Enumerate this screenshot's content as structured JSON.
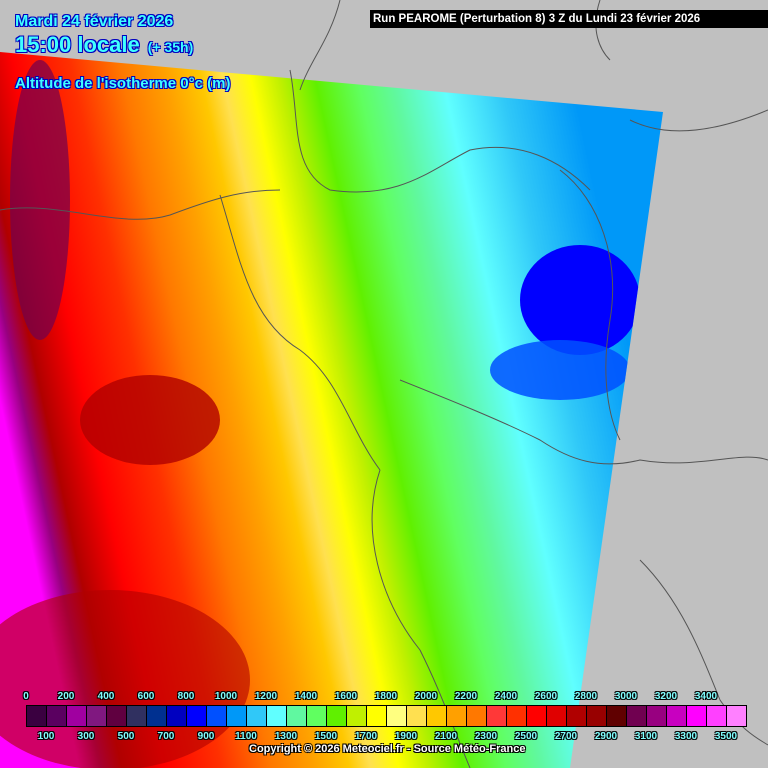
{
  "header": {
    "date": "Mardi 24 février 2026",
    "time": "15:00 locale",
    "lead": "(+ 35h)",
    "parameter": "Altitude de l'isotherme 0°c (m)",
    "run": "Run PEAROME (Perturbation 8) 3 Z du Lundi 23 février 2026"
  },
  "legend": {
    "top_labels": [
      "0",
      "200",
      "400",
      "600",
      "800",
      "1000",
      "1200",
      "1400",
      "1600",
      "1800",
      "2000",
      "2200",
      "2400",
      "2600",
      "2800",
      "3000",
      "3200",
      "3400"
    ],
    "bottom_labels": [
      "100",
      "300",
      "500",
      "700",
      "900",
      "1100",
      "1300",
      "1500",
      "1700",
      "1900",
      "2100",
      "2300",
      "2500",
      "2700",
      "2900",
      "3100",
      "3300",
      "3500"
    ],
    "colors": [
      "#3a0040",
      "#5a0060",
      "#a000a0",
      "#801880",
      "#600040",
      "#303060",
      "#003090",
      "#0000c0",
      "#0000ff",
      "#0050ff",
      "#0098f8",
      "#30c8f8",
      "#60ffff",
      "#60f8a0",
      "#60ff60",
      "#60f000",
      "#c0f000",
      "#ffff00",
      "#ffff80",
      "#ffe050",
      "#ffc800",
      "#ffa000",
      "#ff7800",
      "#ff3838",
      "#ff3000",
      "#ff0000",
      "#e00000",
      "#b00000",
      "#980000",
      "#600000",
      "#700050",
      "#980080",
      "#c800c0",
      "#ff00ff",
      "#ff40ff",
      "#ff80ff"
    ]
  },
  "footer": {
    "copyright": "Copyright © 2026 Meteociel.fr - Source Météo-France"
  }
}
